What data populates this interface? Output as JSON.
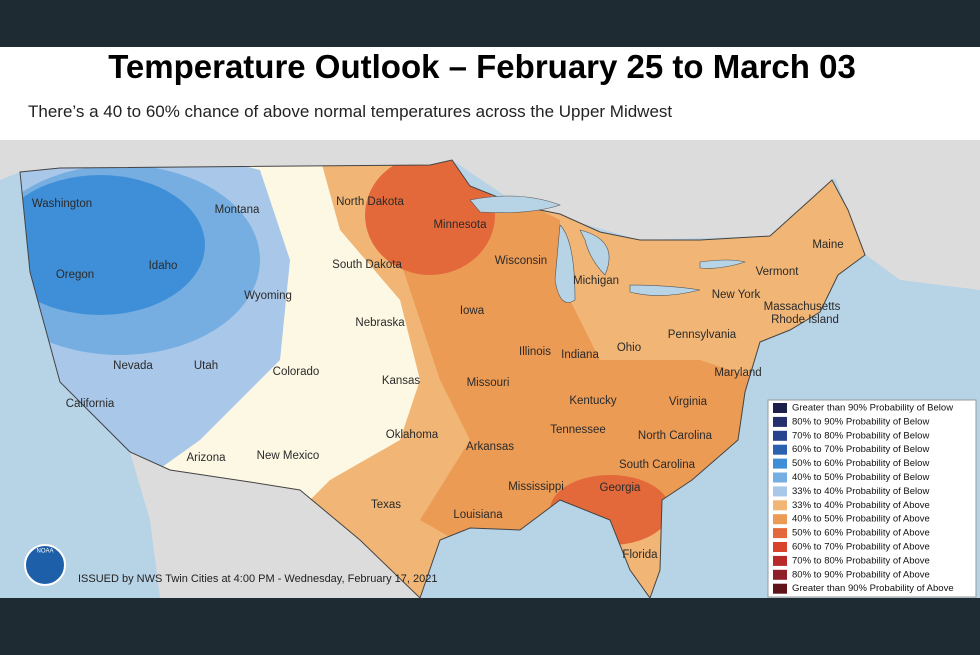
{
  "header": {
    "title": "Temperature Outlook – February 25 to March 03",
    "subtitle": "There’s a 40 to 60% chance of above normal temperatures across the Upper Midwest"
  },
  "map": {
    "state_labels": [
      "Washington",
      "Oregon",
      "California",
      "Nevada",
      "Idaho",
      "Utah",
      "Arizona",
      "Montana",
      "Wyoming",
      "Colorado",
      "New Mexico",
      "North Dakota",
      "South Dakota",
      "Nebraska",
      "Kansas",
      "Oklahoma",
      "Texas",
      "Minnesota",
      "Iowa",
      "Missouri",
      "Arkansas",
      "Louisiana",
      "Wisconsin",
      "Illinois",
      "Michigan",
      "Indiana",
      "Ohio",
      "Kentucky",
      "Tennessee",
      "Mississippi",
      "Georgia",
      "Florida",
      "North Carolina",
      "South Carolina",
      "Virginia",
      "Pennsylvania",
      "New York",
      "Vermont",
      "Maine",
      "Massachusetts",
      "Rhode Island",
      "Maryland"
    ]
  },
  "legend": {
    "items": [
      {
        "label": "Greater than 90% Probability of Below",
        "color": "#1b1f4a"
      },
      {
        "label": "80% to 90% Probability of Below",
        "color": "#26306e"
      },
      {
        "label": "70% to 80% Probability of Below",
        "color": "#27438f"
      },
      {
        "label": "60% to 70% Probability of Below",
        "color": "#2a62b0"
      },
      {
        "label": "50% to 60% Probability of Below",
        "color": "#3f8fd8"
      },
      {
        "label": "40% to 50% Probability of Below",
        "color": "#76aee2"
      },
      {
        "label": "33% to 40% Probability of Below",
        "color": "#a9c7e8"
      },
      {
        "label": "33% to 40% Probability of Above",
        "color": "#f1b676"
      },
      {
        "label": "40% to 50% Probability of Above",
        "color": "#ec9b55"
      },
      {
        "label": "50% to 60% Probability of Above",
        "color": "#e3693a"
      },
      {
        "label": "60% to 70% Probability of Above",
        "color": "#d8432b"
      },
      {
        "label": "70% to 80% Probability of Above",
        "color": "#b82a2a"
      },
      {
        "label": "80% to 90% Probability of Above",
        "color": "#8e1f28"
      },
      {
        "label": "Greater than 90% Probability of Above",
        "color": "#5e1418"
      }
    ]
  },
  "footer": {
    "issued": "ISSUED by NWS Twin Cities at 4:00 PM - Wednesday, February 17, 2021",
    "logo": "NOAA"
  }
}
